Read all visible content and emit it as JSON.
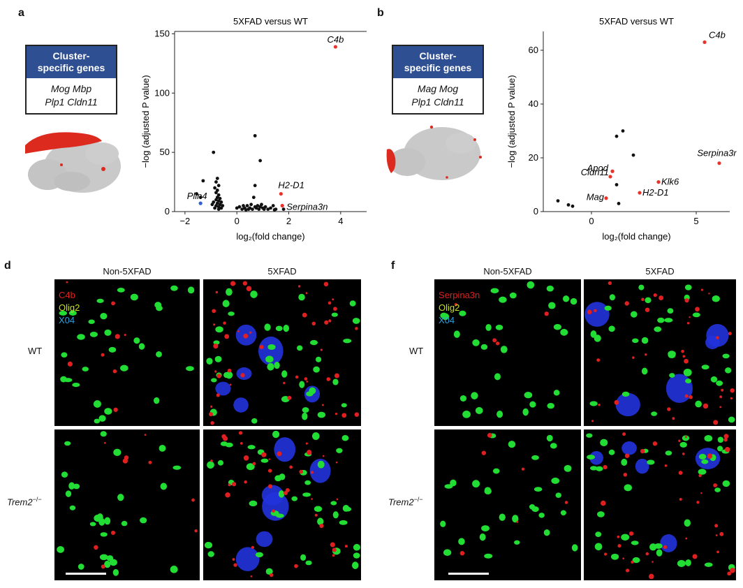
{
  "panel_a": {
    "letter": "a",
    "cluster_box": {
      "title_line1": "Cluster-",
      "title_line2": "specific genes",
      "genes_line1": "Mog Mbp",
      "genes_line2": "Plp1 Cldn11"
    },
    "chart_title": "5XFAD versus WT"
  },
  "panel_b": {
    "letter": "b",
    "cluster_box": {
      "title_line1": "Cluster-",
      "title_line2": "specific genes",
      "genes_line1": "Mag Mog",
      "genes_line2": "Plp1 Cldn11"
    },
    "chart_title": "5XFAD versus WT"
  },
  "panel_d": {
    "letter": "d",
    "col_labels": [
      "Non-5XFAD",
      "5XFAD"
    ],
    "row_labels": [
      "WT",
      "Trem2−/−"
    ],
    "channels": [
      {
        "label": "C4b",
        "color": "#e0201c"
      },
      {
        "label": "Olig2",
        "color": "#c8e02c"
      },
      {
        "label": "X04",
        "color": "#2aa0e0"
      }
    ]
  },
  "panel_f": {
    "letter": "f",
    "col_labels": [
      "Non-5XFAD",
      "5XFAD"
    ],
    "row_labels": [
      "WT",
      "Trem2−/−"
    ],
    "channels": [
      {
        "label": "Serpina3n",
        "color": "#e0201c"
      },
      {
        "label": "Olig2",
        "color": "#c8e02c"
      },
      {
        "label": "X04",
        "color": "#2aa0e0"
      }
    ]
  },
  "chart_data": [
    {
      "type": "scatter",
      "title": "5XFAD versus WT",
      "xlabel": "log₂(fold change)",
      "ylabel": "−log (adjusted P value)",
      "xlim": [
        -2.4,
        5.0
      ],
      "ylim": [
        0,
        152
      ],
      "xticks": [
        -2,
        0,
        2,
        4
      ],
      "yticks": [
        0,
        50,
        100,
        150
      ],
      "labeled_points": [
        {
          "label": "C4b",
          "x": 3.8,
          "y": 139,
          "color": "#e8332a"
        },
        {
          "label": "H2-D1",
          "x": 1.7,
          "y": 15,
          "color": "#e8332a"
        },
        {
          "label": "Serpina3n",
          "x": 1.75,
          "y": 5,
          "color": "#e8332a"
        },
        {
          "label": "Plin4",
          "x": -1.4,
          "y": 7,
          "color": "#2f5fd0"
        }
      ],
      "other_points": [
        [
          0.7,
          64
        ],
        [
          0.9,
          43
        ],
        [
          -1.3,
          26
        ],
        [
          -1.55,
          15
        ],
        [
          -1.4,
          12
        ],
        [
          -0.9,
          50
        ],
        [
          -0.75,
          28
        ],
        [
          -0.8,
          25
        ],
        [
          -0.7,
          22
        ],
        [
          -0.85,
          20
        ],
        [
          -0.75,
          18
        ],
        [
          -0.8,
          16
        ],
        [
          -0.7,
          14
        ],
        [
          -0.75,
          12
        ],
        [
          -0.8,
          10
        ],
        [
          -0.7,
          9
        ],
        [
          -0.9,
          8
        ],
        [
          -0.75,
          7
        ],
        [
          -0.65,
          6
        ],
        [
          -0.8,
          5
        ],
        [
          -0.7,
          4
        ],
        [
          -0.6,
          3
        ],
        [
          -0.85,
          3
        ],
        [
          -0.7,
          2
        ],
        [
          -0.6,
          8
        ],
        [
          -0.55,
          5
        ],
        [
          -0.65,
          11
        ],
        [
          -0.95,
          6
        ],
        [
          0.7,
          22
        ],
        [
          0.65,
          12
        ],
        [
          0.0,
          3
        ],
        [
          0.1,
          4
        ],
        [
          0.2,
          2
        ],
        [
          0.3,
          3
        ],
        [
          0.4,
          5
        ],
        [
          0.5,
          3
        ],
        [
          0.55,
          6
        ],
        [
          0.6,
          2
        ],
        [
          0.7,
          4
        ],
        [
          0.75,
          3
        ],
        [
          0.8,
          5
        ],
        [
          0.85,
          2
        ],
        [
          0.9,
          4
        ],
        [
          1.0,
          3
        ],
        [
          1.1,
          4
        ],
        [
          1.2,
          2
        ],
        [
          1.3,
          3
        ],
        [
          1.4,
          5
        ],
        [
          1.5,
          2
        ],
        [
          0.45,
          2
        ],
        [
          0.35,
          1.5
        ],
        [
          0.95,
          6
        ],
        [
          1.05,
          2
        ],
        [
          0.25,
          5
        ],
        [
          1.45,
          1.5
        ],
        [
          1.8,
          2
        ]
      ]
    },
    {
      "type": "scatter",
      "title": "5XFAD versus WT",
      "xlabel": "log₂(fold change)",
      "ylabel": "−log (adjusted P value)",
      "xlim": [
        -2.3,
        6.6
      ],
      "ylim": [
        0,
        67
      ],
      "xticks": [
        0,
        5
      ],
      "yticks": [
        0,
        20,
        40,
        60
      ],
      "labeled_points": [
        {
          "label": "C4b",
          "x": 5.4,
          "y": 63,
          "color": "#e8332a"
        },
        {
          "label": "Serpina3n",
          "x": 6.1,
          "y": 18,
          "color": "#e8332a"
        },
        {
          "label": "Apod",
          "x": 1.0,
          "y": 15,
          "color": "#e8332a"
        },
        {
          "label": "Cldn11",
          "x": 0.9,
          "y": 13,
          "color": "#e8332a"
        },
        {
          "label": "Klk6",
          "x": 3.2,
          "y": 11,
          "color": "#e8332a"
        },
        {
          "label": "H2-D1",
          "x": 2.3,
          "y": 7,
          "color": "#e8332a"
        },
        {
          "label": "Mag",
          "x": 0.7,
          "y": 5,
          "color": "#e8332a"
        }
      ],
      "other_points": [
        [
          1.5,
          30
        ],
        [
          1.2,
          28
        ],
        [
          2.0,
          21
        ],
        [
          1.2,
          10
        ],
        [
          1.3,
          3
        ],
        [
          -1.6,
          4
        ],
        [
          -1.1,
          2.5
        ],
        [
          -0.9,
          2
        ]
      ]
    }
  ]
}
